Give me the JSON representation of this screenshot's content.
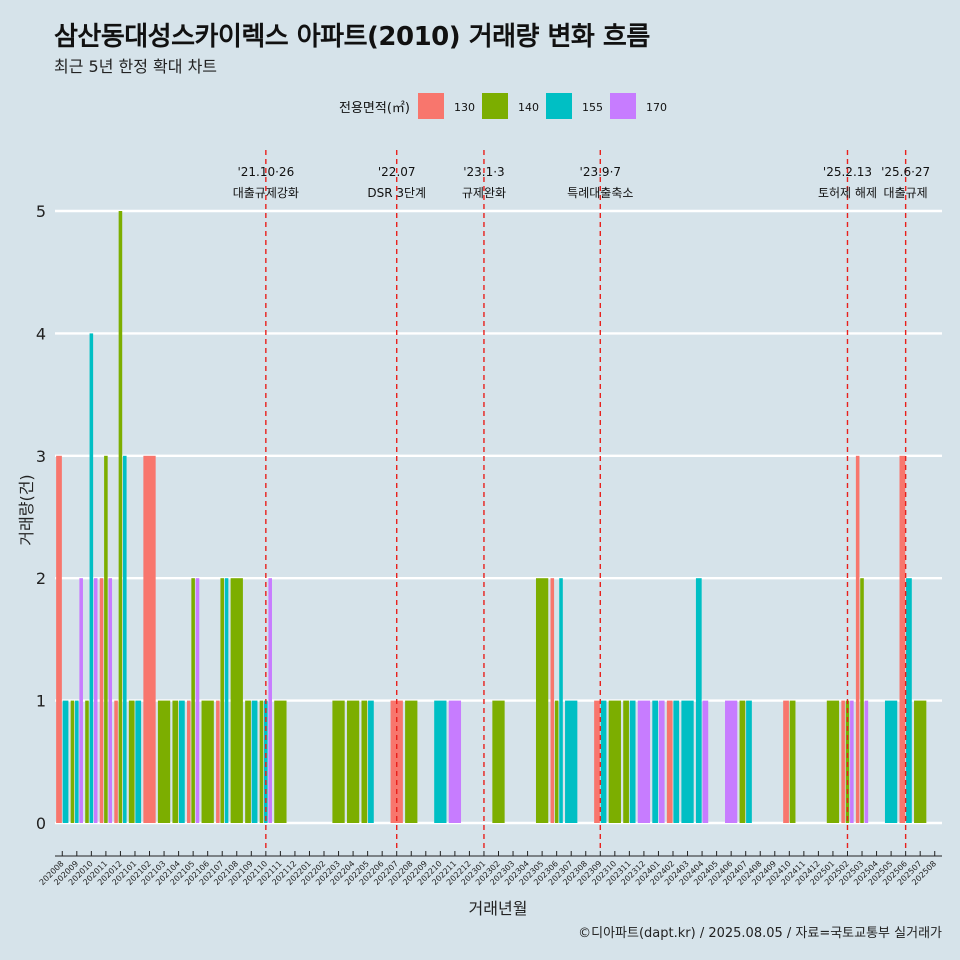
{
  "header": {
    "title": "삼산동대성스카이렉스 아파트(2010) 거래량 변화 흐름",
    "subtitle": "최근 5년 한정 확대 차트"
  },
  "caption": "©디아파트(dapt.kr) / 2025.08.05 / 자료=국토교통부 실거래가",
  "chart_data": {
    "type": "bar",
    "xlabel": "거래년월",
    "ylabel": "거래량(건)",
    "ylim": [
      0,
      5
    ],
    "yticks": [
      0,
      1,
      2,
      3,
      4,
      5
    ],
    "grid": true,
    "legend": {
      "title": "전용면적(㎡)",
      "placement": "top",
      "items": [
        {
          "name": "130",
          "color": "#F8766D"
        },
        {
          "name": "140",
          "color": "#7CAE00"
        },
        {
          "name": "155",
          "color": "#00BFC4"
        },
        {
          "name": "170",
          "color": "#C77CFF"
        }
      ]
    },
    "categories": [
      "202008",
      "202009",
      "202010",
      "202011",
      "202012",
      "202101",
      "202102",
      "202103",
      "202104",
      "202105",
      "202106",
      "202107",
      "202108",
      "202109",
      "202110",
      "202111",
      "202112",
      "202201",
      "202202",
      "202203",
      "202204",
      "202205",
      "202206",
      "202207",
      "202208",
      "202209",
      "202210",
      "202211",
      "202212",
      "202301",
      "202302",
      "202303",
      "202304",
      "202305",
      "202306",
      "202307",
      "202308",
      "202309",
      "202310",
      "202311",
      "202312",
      "202401",
      "202402",
      "202403",
      "202404",
      "202405",
      "202406",
      "202407",
      "202408",
      "202409",
      "202410",
      "202411",
      "202412",
      "202501",
      "202502",
      "202503",
      "202504",
      "202505",
      "202506",
      "202507",
      "202508"
    ],
    "bars": [
      {
        "month": "202008",
        "values": {
          "130": 3,
          "155": 1
        }
      },
      {
        "month": "202009",
        "values": {
          "140": 1,
          "155": 1,
          "170": 2
        }
      },
      {
        "month": "202010",
        "values": {
          "140": 1,
          "155": 4,
          "170": 2
        }
      },
      {
        "month": "202011",
        "values": {
          "130": 2,
          "140": 3,
          "170": 2
        }
      },
      {
        "month": "202012",
        "values": {
          "130": 1,
          "140": 5,
          "155": 3
        }
      },
      {
        "month": "202101",
        "values": {
          "140": 1,
          "155": 1
        }
      },
      {
        "month": "202102",
        "values": {
          "130": 3
        }
      },
      {
        "month": "202103",
        "values": {
          "140": 1
        }
      },
      {
        "month": "202104",
        "values": {
          "140": 1,
          "155": 1
        }
      },
      {
        "month": "202105",
        "values": {
          "130": 1,
          "140": 2,
          "170": 2
        }
      },
      {
        "month": "202106",
        "values": {
          "140": 1
        }
      },
      {
        "month": "202107",
        "values": {
          "130": 1,
          "140": 2,
          "155": 2
        }
      },
      {
        "month": "202108",
        "values": {
          "140": 2
        }
      },
      {
        "month": "202109",
        "values": {
          "140": 1,
          "155": 1
        }
      },
      {
        "month": "202110",
        "values": {
          "140": 1,
          "155": 1,
          "170": 2
        }
      },
      {
        "month": "202111",
        "values": {
          "140": 1
        }
      },
      {
        "month": "202203",
        "values": {
          "140": 1
        }
      },
      {
        "month": "202204",
        "values": {
          "140": 1
        }
      },
      {
        "month": "202205",
        "values": {
          "140": 1,
          "155": 1
        }
      },
      {
        "month": "202207",
        "values": {
          "130": 1
        }
      },
      {
        "month": "202208",
        "values": {
          "140": 1
        }
      },
      {
        "month": "202210",
        "values": {
          "155": 1
        }
      },
      {
        "month": "202211",
        "values": {
          "170": 1
        }
      },
      {
        "month": "202302",
        "values": {
          "140": 1
        }
      },
      {
        "month": "202305",
        "values": {
          "140": 2
        }
      },
      {
        "month": "202306",
        "values": {
          "130": 2,
          "140": 1,
          "155": 2
        }
      },
      {
        "month": "202307",
        "values": {
          "155": 1
        }
      },
      {
        "month": "202309",
        "values": {
          "130": 1,
          "155": 1
        }
      },
      {
        "month": "202310",
        "values": {
          "140": 1
        }
      },
      {
        "month": "202311",
        "values": {
          "140": 1,
          "155": 1
        }
      },
      {
        "month": "202312",
        "values": {
          "170": 1
        }
      },
      {
        "month": "202401",
        "values": {
          "155": 1,
          "170": 1
        }
      },
      {
        "month": "202402",
        "values": {
          "130": 1,
          "155": 1
        }
      },
      {
        "month": "202403",
        "values": {
          "155": 1
        }
      },
      {
        "month": "202404",
        "values": {
          "155": 2,
          "170": 1
        }
      },
      {
        "month": "202406",
        "values": {
          "170": 1
        }
      },
      {
        "month": "202407",
        "values": {
          "140": 1,
          "155": 1
        }
      },
      {
        "month": "202410",
        "values": {
          "130": 1,
          "140": 1
        }
      },
      {
        "month": "202501",
        "values": {
          "140": 1
        }
      },
      {
        "month": "202502",
        "values": {
          "130": 1,
          "140": 1,
          "170": 1
        }
      },
      {
        "month": "202503",
        "values": {
          "130": 3,
          "140": 2,
          "170": 1
        }
      },
      {
        "month": "202505",
        "values": {
          "155": 1
        }
      },
      {
        "month": "202506",
        "values": {
          "130": 3,
          "155": 2
        }
      },
      {
        "month": "202507",
        "values": {
          "140": 1
        }
      }
    ],
    "events": [
      {
        "month": "202110",
        "line1": "'21.10·26",
        "line2": "대출규제강화",
        "size": "normal"
      },
      {
        "month": "202207",
        "line1": "'22.07",
        "line2": "DSR 3단계",
        "size": "normal"
      },
      {
        "month": "202301",
        "line1": "'23.1·3",
        "line2": "규제완화",
        "size": "normal"
      },
      {
        "month": "202309",
        "line1": "'23.9·7",
        "line2": "특례대출축소",
        "size": "normal"
      },
      {
        "month": "202502",
        "line1": "'25.2.13",
        "line2": "토허제 해제",
        "size": "small"
      },
      {
        "month": "202506",
        "line1": "'25.6·27",
        "line2": "대출규제",
        "size": "normal"
      }
    ],
    "event_line_color": "#e8201c"
  }
}
